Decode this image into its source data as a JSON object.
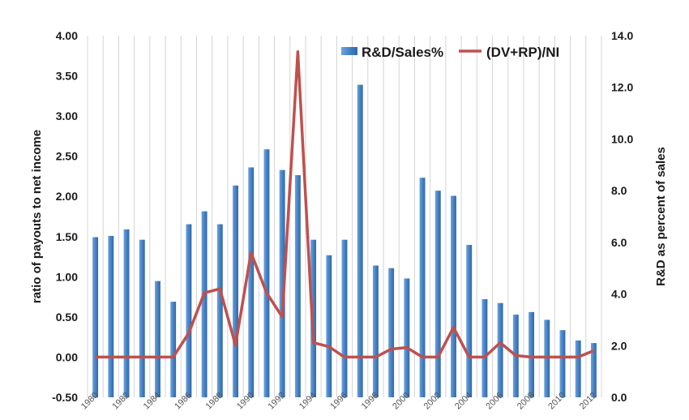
{
  "chart_data": {
    "type": "bar",
    "x": [
      1980,
      1981,
      1982,
      1983,
      1984,
      1985,
      1986,
      1987,
      1988,
      1989,
      1990,
      1991,
      1992,
      1993,
      1994,
      1995,
      1996,
      1997,
      1998,
      1999,
      2000,
      2001,
      2002,
      2003,
      2004,
      2005,
      2006,
      2007,
      2008,
      2009,
      2010,
      2011,
      2012
    ],
    "x_tick_labels": [
      "1980",
      "1982",
      "1984",
      "1986",
      "1988",
      "1990",
      "1992",
      "1994",
      "1996",
      "1998",
      "2000",
      "2002",
      "2004",
      "2006",
      "2008",
      "2010",
      "2012"
    ],
    "series": [
      {
        "name": "R&D/Sales%",
        "kind": "bar",
        "axis": "right",
        "color": "#4a86c8",
        "values": [
          6.2,
          6.25,
          6.5,
          6.1,
          4.5,
          3.7,
          6.7,
          7.2,
          6.7,
          8.2,
          8.9,
          9.6,
          8.8,
          8.6,
          6.1,
          5.5,
          6.1,
          12.1,
          5.1,
          5.0,
          4.6,
          8.5,
          8.0,
          7.8,
          5.9,
          3.8,
          3.65,
          3.2,
          3.3,
          3.0,
          2.6,
          2.2,
          2.1
        ]
      },
      {
        "name": "(DV+RP)/NI",
        "kind": "line",
        "axis": "left",
        "color": "#c0504d",
        "values": [
          0.0,
          0.0,
          0.0,
          0.0,
          0.0,
          0.0,
          0.3,
          0.8,
          0.85,
          0.15,
          1.3,
          0.8,
          0.5,
          3.8,
          0.18,
          0.13,
          0.0,
          0.0,
          0.0,
          0.1,
          0.12,
          0.0,
          0.0,
          0.37,
          0.0,
          0.0,
          0.18,
          0.02,
          0.0,
          0.0,
          0.0,
          0.0,
          0.08
        ]
      }
    ],
    "y_left": {
      "label": "ratio of payouts to net income",
      "lim": [
        -0.5,
        4.0
      ],
      "ticks": [
        -0.5,
        0,
        0.5,
        1,
        1.5,
        2,
        2.5,
        3,
        3.5,
        4
      ],
      "tick_labels": [
        "-0.50",
        "0.00",
        "0.50",
        "1.00",
        "1.50",
        "2.00",
        "2.50",
        "3.00",
        "3.50",
        "4.00"
      ]
    },
    "y_right": {
      "label": "R&D as percent of sales",
      "lim": [
        0,
        14
      ],
      "ticks": [
        0,
        2,
        4,
        6,
        8,
        10,
        12,
        14
      ],
      "tick_labels": [
        "0.0",
        "2.0",
        "4.0",
        "6.0",
        "8.0",
        "10.0",
        "12.0",
        "14.0"
      ]
    },
    "grid": "vertical",
    "legend_position": "top-right"
  }
}
